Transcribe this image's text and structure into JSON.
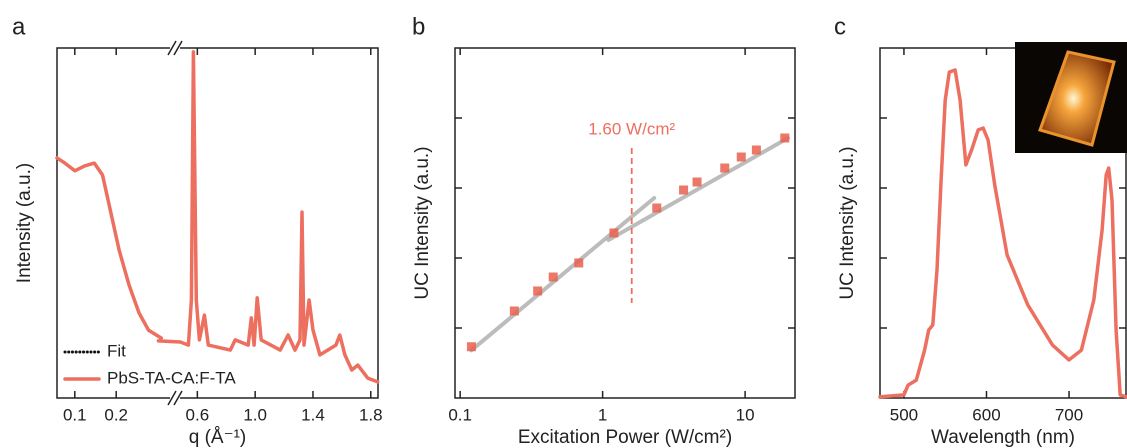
{
  "chart_data": [
    {
      "type": "line",
      "panel_label": "a",
      "x_label": "q (Å⁻¹)",
      "y_label": "Intensity (a.u.)",
      "xlim": [
        0.057,
        1.85
      ],
      "x_break": [
        0.33,
        0.48
      ],
      "ylim": [
        0,
        1
      ],
      "xticks": [
        0.1,
        0.2,
        0.6,
        {
          "value": 1,
          "label": "1.0"
        },
        1.4,
        1.8
      ],
      "legend": "lower left",
      "x": [
        0.057,
        0.076,
        0.1,
        0.124,
        0.147,
        0.167,
        0.183,
        0.207,
        0.231,
        0.255,
        0.278,
        0.309,
        0.331,
        0.483,
        0.538,
        0.559,
        0.573,
        0.593,
        0.614,
        0.649,
        0.676,
        0.828,
        0.862,
        0.952,
        0.973,
        0.993,
        1.014,
        1.042,
        1.173,
        1.228,
        1.276,
        1.31,
        1.324,
        1.338,
        1.373,
        1.4,
        1.448,
        1.559,
        1.586,
        1.621,
        1.669,
        1.71,
        1.779,
        1.848
      ],
      "series": [
        {
          "name": "Fit",
          "color": "#111111",
          "style": "dotted",
          "values": [
            0.686,
            0.671,
            0.649,
            0.663,
            0.671,
            0.637,
            0.551,
            0.423,
            0.323,
            0.243,
            0.194,
            0.171,
            null,
            null,
            null,
            null,
            null,
            null,
            null,
            null,
            null,
            null,
            null,
            null,
            null,
            null,
            null,
            null,
            null,
            null,
            null,
            null,
            null,
            null,
            null,
            null,
            null,
            null,
            null,
            null,
            null,
            null,
            null,
            null
          ]
        },
        {
          "name": "PbS-TA-CA:F-TA",
          "color": "#ec6f5f",
          "style": "solid",
          "values": [
            0.686,
            0.671,
            0.649,
            0.663,
            0.671,
            0.637,
            0.551,
            0.423,
            0.323,
            0.243,
            0.194,
            0.171,
            0.163,
            0.16,
            0.151,
            0.28,
            0.989,
            0.28,
            0.166,
            0.237,
            0.151,
            0.137,
            0.166,
            0.151,
            0.229,
            0.151,
            0.286,
            0.166,
            0.137,
            0.18,
            0.137,
            0.166,
            0.531,
            0.151,
            0.28,
            0.194,
            0.123,
            0.151,
            0.18,
            0.123,
            0.08,
            0.094,
            0.057,
            0.046
          ]
        }
      ]
    },
    {
      "type": "scatter",
      "panel_label": "b",
      "x_label": "Excitation Power (W/cm²)",
      "y_label": "UC Intensity (a.u.)",
      "xscale": "log",
      "yscale": "log",
      "xlim": [
        0.092,
        22.4
      ],
      "ylim": [
        1,
        100000
      ],
      "xticks": [
        0.1,
        1,
        10
      ],
      "yticks": [
        10,
        100,
        1000,
        10000
      ],
      "x": [
        0.12,
        0.24,
        0.35,
        0.45,
        0.68,
        1.2,
        2.4,
        3.7,
        4.6,
        7.2,
        9.4,
        12,
        19
      ],
      "series": [
        {
          "color": "#e8604f",
          "values": [
            5.4,
            17.5,
            33.8,
            53.5,
            84.9,
            228,
            518,
            936,
            1218,
            1931,
            2773,
            3491,
            5179
          ]
        }
      ],
      "fit_lines": [
        {
          "color": "#a6a6a6",
          "x": [
            0.12,
            2.3
          ],
          "y": [
            4.8,
            720
          ]
        },
        {
          "color": "#a6a6a6",
          "x": [
            1.1,
            20
          ],
          "y": [
            181,
            5179
          ]
        }
      ],
      "annotation": {
        "x": 1.6,
        "label": "1.60 W/cm²",
        "color": "#ec6f5f"
      }
    },
    {
      "type": "line",
      "panel_label": "c",
      "x_label": "Wavelength (nm)",
      "y_label": "UC Intensity (a.u.)",
      "xlim": [
        471,
        769
      ],
      "ylim": [
        0,
        1
      ],
      "xticks": [
        500,
        600,
        700
      ],
      "yticks": [
        0.2,
        0.4,
        0.6,
        0.8
      ],
      "x": [
        471,
        500,
        505,
        515,
        525,
        530,
        535,
        540,
        545,
        550,
        555,
        562,
        568,
        575,
        582,
        590,
        596,
        602,
        610,
        625,
        650,
        680,
        700,
        715,
        730,
        740,
        745,
        748,
        752,
        757,
        762,
        769
      ],
      "series": [
        {
          "color": "#ec6f5f",
          "style": "solid",
          "values": [
            0.003,
            0.009,
            0.037,
            0.051,
            0.137,
            0.194,
            0.209,
            0.366,
            0.623,
            0.851,
            0.931,
            0.937,
            0.851,
            0.666,
            0.709,
            0.766,
            0.771,
            0.737,
            0.609,
            0.409,
            0.266,
            0.151,
            0.109,
            0.137,
            0.28,
            0.48,
            0.637,
            0.657,
            0.566,
            0.194,
            0.009,
            0.003
          ]
        }
      ]
    }
  ]
}
